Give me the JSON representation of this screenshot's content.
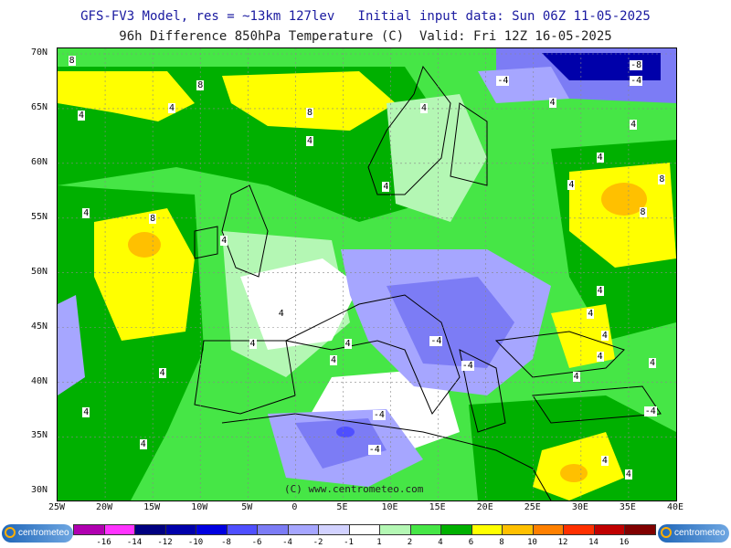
{
  "header": {
    "line1": "GFS-FV3 Model, res = ~13km 127lev   Initial input data: Sun 06Z 11-05-2025",
    "line2": "96h Difference 850hPa Temperature (C)  Valid: Fri 12Z 16-05-2025"
  },
  "map": {
    "lat_labels": [
      "70N",
      "65N",
      "60N",
      "55N",
      "50N",
      "45N",
      "40N",
      "35N",
      "30N"
    ],
    "lon_labels": [
      "25W",
      "20W",
      "15W",
      "10W",
      "5W",
      "0",
      "5E",
      "10E",
      "15E",
      "20E",
      "25E",
      "30E",
      "35E",
      "40E"
    ],
    "isoline_labels": [
      {
        "text": "8",
        "lon": -23.5,
        "lat": 69.3
      },
      {
        "text": "8",
        "lon": -10.0,
        "lat": 67.1
      },
      {
        "text": "4",
        "lon": -22.5,
        "lat": 64.3
      },
      {
        "text": "4",
        "lon": -13.0,
        "lat": 65.0
      },
      {
        "text": "8",
        "lon": 1.5,
        "lat": 64.6
      },
      {
        "text": "4",
        "lon": 1.5,
        "lat": 62.0
      },
      {
        "text": "4",
        "lon": 13.5,
        "lat": 65.0
      },
      {
        "text": "-4",
        "lon": 21.5,
        "lat": 67.5
      },
      {
        "text": "-8",
        "lon": 35.5,
        "lat": 68.9
      },
      {
        "text": "-4",
        "lon": 35.5,
        "lat": 67.5
      },
      {
        "text": "4",
        "lon": 27.0,
        "lat": 65.5
      },
      {
        "text": "4",
        "lon": 35.5,
        "lat": 63.5
      },
      {
        "text": "4",
        "lon": 32.0,
        "lat": 60.5
      },
      {
        "text": "4",
        "lon": 29.0,
        "lat": 58.0
      },
      {
        "text": "4",
        "lon": 9.5,
        "lat": 57.8
      },
      {
        "text": "8",
        "lon": 38.5,
        "lat": 58.5
      },
      {
        "text": "8",
        "lon": 36.5,
        "lat": 55.5
      },
      {
        "text": "4",
        "lon": -22.0,
        "lat": 55.4
      },
      {
        "text": "8",
        "lon": -15.0,
        "lat": 54.9
      },
      {
        "text": "4",
        "lon": -7.5,
        "lat": 52.9
      },
      {
        "text": "4",
        "lon": -1.5,
        "lat": 46.2
      },
      {
        "text": "4",
        "lon": 5.5,
        "lat": 43.5
      },
      {
        "text": "-4",
        "lon": 14.5,
        "lat": 43.7
      },
      {
        "text": "4",
        "lon": -4.5,
        "lat": 43.5
      },
      {
        "text": "4",
        "lon": 4.0,
        "lat": 42.0
      },
      {
        "text": "4",
        "lon": -14.0,
        "lat": 40.8
      },
      {
        "text": "4",
        "lon": -22.0,
        "lat": 37.2
      },
      {
        "text": "-4",
        "lon": 17.8,
        "lat": 41.5
      },
      {
        "text": "4",
        "lon": 32.0,
        "lat": 48.3
      },
      {
        "text": "4",
        "lon": 31.0,
        "lat": 46.2
      },
      {
        "text": "4",
        "lon": 32.5,
        "lat": 44.2
      },
      {
        "text": "4",
        "lon": 32.0,
        "lat": 42.3
      },
      {
        "text": "4",
        "lon": 29.5,
        "lat": 40.5
      },
      {
        "text": "4",
        "lon": 37.5,
        "lat": 41.7
      },
      {
        "text": "-4",
        "lon": 37.0,
        "lat": 37.3
      },
      {
        "text": "4",
        "lon": -16.0,
        "lat": 34.3
      },
      {
        "text": "-4",
        "lon": 8.5,
        "lat": 37.0
      },
      {
        "text": "-4",
        "lon": 8.0,
        "lat": 33.8
      },
      {
        "text": "4",
        "lon": 32.5,
        "lat": 32.8
      },
      {
        "text": "4",
        "lon": 35.0,
        "lat": 31.5
      }
    ],
    "copyright": "(C) www.centrometeo.com"
  },
  "legend": {
    "ticks": [
      "-16",
      "-14",
      "-12",
      "-10",
      "-8",
      "-6",
      "-4",
      "-2",
      "-1",
      "1",
      "2",
      "4",
      "6",
      "8",
      "10",
      "12",
      "14",
      "16"
    ],
    "colors": [
      "#b000b0",
      "#ff33ff",
      "#000080",
      "#0000aa",
      "#0000e0",
      "#4f4fff",
      "#7c7cf5",
      "#a6a6ff",
      "#d2d2ff",
      "#ffffff",
      "#b4f7b4",
      "#46e646",
      "#00b000",
      "#ffff00",
      "#ffc000",
      "#ff8000",
      "#ff3000",
      "#c00000",
      "#800000"
    ],
    "logo_text": "centrometeo"
  }
}
